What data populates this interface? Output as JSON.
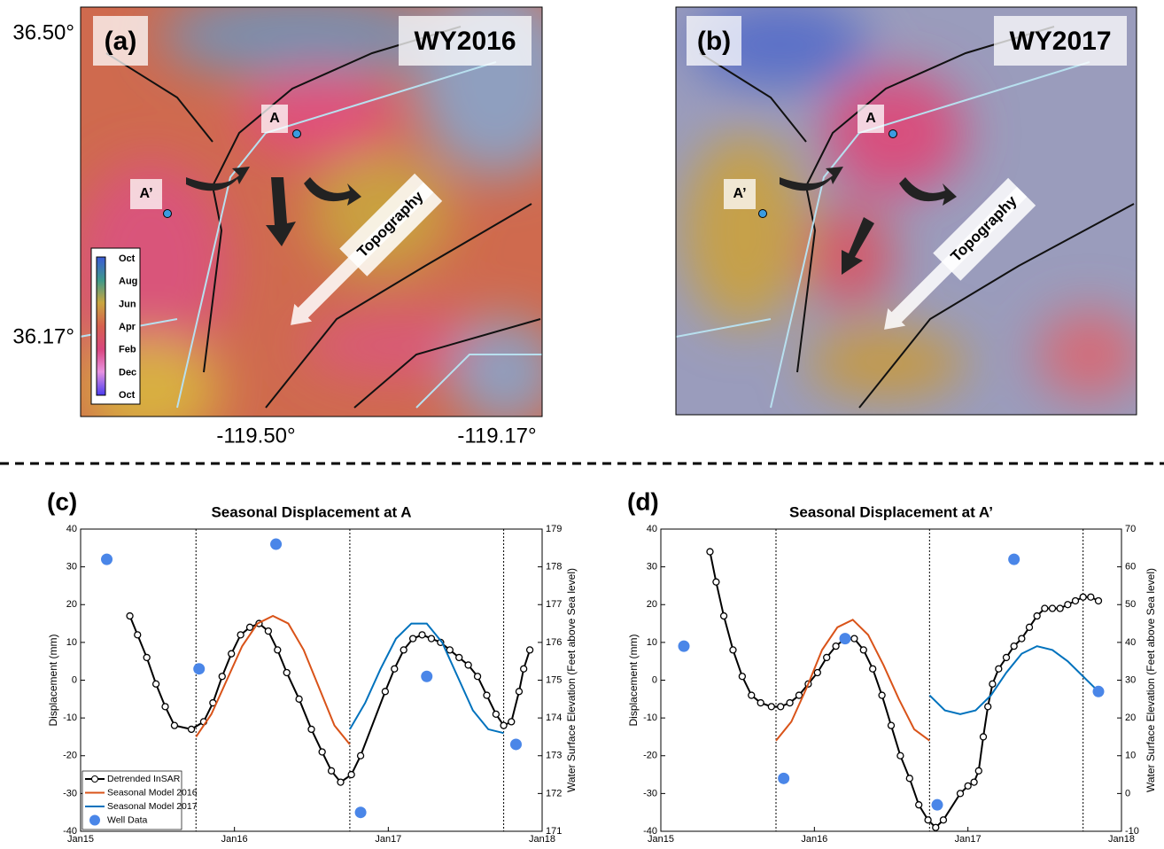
{
  "maps": [
    {
      "panel": "(a)",
      "year": "WY2016",
      "points": [
        "A",
        "A’"
      ],
      "arrow_label": "Topography"
    },
    {
      "panel": "(b)",
      "year": "WY2017",
      "points": [
        "A",
        "A’"
      ],
      "arrow_label": "Topography"
    }
  ],
  "map_axes": {
    "lat": [
      "36.50°",
      "36.17°"
    ],
    "lon": [
      "-119.50°",
      "-119.17°"
    ]
  },
  "colorbar": [
    "Oct",
    "Aug",
    "Jun",
    "Apr",
    "Feb",
    "Dec",
    "Oct"
  ],
  "chart_data": [
    {
      "type": "line",
      "panel": "(c)",
      "title": "Seasonal Displacement at A",
      "ylabel": "Displacement (mm)",
      "y2label": "Water Surface Elevation (Feet above Sea level)",
      "xlim": [
        2015,
        2018
      ],
      "xticks": [
        {
          "value": 2015,
          "label": "Jan15"
        },
        {
          "value": 2016,
          "label": "Jan16"
        },
        {
          "value": 2017,
          "label": "Jan17"
        },
        {
          "value": 2018,
          "label": "Jan18"
        }
      ],
      "ylim": [
        -40,
        40
      ],
      "yticks": [
        -40,
        -30,
        -20,
        -10,
        0,
        10,
        20,
        30,
        40
      ],
      "y2lim": [
        171,
        179
      ],
      "y2ticks": [
        171,
        172,
        173,
        174,
        175,
        176,
        177,
        178,
        179
      ],
      "vlines": [
        2015.75,
        2016.75,
        2017.75
      ],
      "legend": "lower left",
      "series": [
        {
          "name": "Detrended InSAR",
          "color": "#000000",
          "marker": "circle",
          "x": [
            2015.32,
            2015.37,
            2015.43,
            2015.49,
            2015.55,
            2015.61,
            2015.72,
            2015.8,
            2015.86,
            2015.92,
            2015.98,
            2016.04,
            2016.1,
            2016.16,
            2016.22,
            2016.28,
            2016.34,
            2016.42,
            2016.5,
            2016.57,
            2016.63,
            2016.69,
            2016.76,
            2016.82,
            2016.98,
            2017.04,
            2017.1,
            2017.16,
            2017.22,
            2017.28,
            2017.34,
            2017.4,
            2017.46,
            2017.52,
            2017.58,
            2017.64,
            2017.7,
            2017.75,
            2017.8,
            2017.85,
            2017.88,
            2017.92
          ],
          "values": [
            17,
            12,
            6,
            -1,
            -7,
            -12,
            -13,
            -11,
            -6,
            1,
            7,
            12,
            14,
            15,
            13,
            8,
            2,
            -5,
            -13,
            -19,
            -24,
            -27,
            -25,
            -20,
            -3,
            3,
            8,
            11,
            12,
            11,
            10,
            8,
            6,
            4,
            1,
            -4,
            -9,
            -12,
            -11,
            -3,
            3,
            8
          ]
        },
        {
          "name": "Seasonal Model 2016",
          "color": "#d95319",
          "x": [
            2015.75,
            2015.85,
            2015.95,
            2016.05,
            2016.15,
            2016.25,
            2016.35,
            2016.45,
            2016.55,
            2016.65,
            2016.75
          ],
          "values": [
            -15,
            -9,
            0,
            9,
            15,
            17,
            15,
            8,
            -2,
            -12,
            -17
          ]
        },
        {
          "name": "Seasonal Model 2017",
          "color": "#0072bd",
          "x": [
            2016.75,
            2016.85,
            2016.95,
            2017.05,
            2017.15,
            2017.25,
            2017.35,
            2017.45,
            2017.55,
            2017.65,
            2017.75
          ],
          "values": [
            -13,
            -6,
            3,
            11,
            15,
            15,
            10,
            1,
            -8,
            -13,
            -14
          ]
        },
        {
          "name": "Well Data",
          "color": "#4a86e8",
          "marker": "dot",
          "axis": "y2",
          "x": [
            2015.17,
            2015.77,
            2016.27,
            2016.82,
            2017.25,
            2017.83
          ],
          "values": [
            178.2,
            175.3,
            178.6,
            171.5,
            175.1,
            173.3
          ]
        }
      ]
    },
    {
      "type": "line",
      "panel": "(d)",
      "title": "Seasonal Displacement at A’",
      "ylabel": "Displacement (mm)",
      "y2label": "Water Surface Elevation (Feet above Sea level)",
      "xlim": [
        2015,
        2018
      ],
      "xticks": [
        {
          "value": 2015,
          "label": "Jan15"
        },
        {
          "value": 2016,
          "label": "Jan16"
        },
        {
          "value": 2017,
          "label": "Jan17"
        },
        {
          "value": 2018,
          "label": "Jan18"
        }
      ],
      "ylim": [
        -40,
        40
      ],
      "yticks": [
        -40,
        -30,
        -20,
        -10,
        0,
        10,
        20,
        30,
        40
      ],
      "y2lim": [
        -10,
        70
      ],
      "y2ticks": [
        -10,
        0,
        10,
        20,
        30,
        40,
        50,
        60,
        70
      ],
      "vlines": [
        2015.75,
        2016.75,
        2017.75
      ],
      "series": [
        {
          "name": "Detrended InSAR",
          "color": "#000000",
          "marker": "circle",
          "x": [
            2015.32,
            2015.36,
            2015.41,
            2015.47,
            2015.53,
            2015.59,
            2015.65,
            2015.72,
            2015.78,
            2015.84,
            2015.9,
            2015.96,
            2016.02,
            2016.08,
            2016.14,
            2016.2,
            2016.26,
            2016.32,
            2016.38,
            2016.44,
            2016.5,
            2016.56,
            2016.62,
            2016.68,
            2016.74,
            2016.79,
            2016.84,
            2016.95,
            2017.0,
            2017.04,
            2017.07,
            2017.1,
            2017.13,
            2017.16,
            2017.2,
            2017.25,
            2017.3,
            2017.35,
            2017.4,
            2017.45,
            2017.5,
            2017.55,
            2017.6,
            2017.65,
            2017.7,
            2017.75,
            2017.8,
            2017.85
          ],
          "values": [
            34,
            26,
            17,
            8,
            1,
            -4,
            -6,
            -7,
            -7,
            -6,
            -4,
            -1,
            2,
            6,
            9,
            11,
            11,
            8,
            3,
            -4,
            -12,
            -20,
            -26,
            -33,
            -37,
            -39,
            -37,
            -30,
            -28,
            -27,
            -24,
            -15,
            -7,
            -1,
            3,
            6,
            9,
            11,
            14,
            17,
            19,
            19,
            19,
            20,
            21,
            22,
            22,
            21
          ]
        },
        {
          "name": "Seasonal Model 2016",
          "color": "#d95319",
          "x": [
            2015.75,
            2015.85,
            2015.95,
            2016.05,
            2016.15,
            2016.25,
            2016.35,
            2016.45,
            2016.55,
            2016.65,
            2016.75
          ],
          "values": [
            -16,
            -11,
            -2,
            8,
            14,
            16,
            12,
            4,
            -5,
            -13,
            -16
          ]
        },
        {
          "name": "Seasonal Model 2017",
          "color": "#0072bd",
          "x": [
            2016.75,
            2016.85,
            2016.95,
            2017.05,
            2017.15,
            2017.25,
            2017.35,
            2017.45,
            2017.55,
            2017.65,
            2017.75,
            2017.85
          ],
          "values": [
            -4,
            -8,
            -9,
            -8,
            -4,
            2,
            7,
            9,
            8,
            5,
            1,
            -3
          ]
        },
        {
          "name": "Well Data",
          "color": "#4a86e8",
          "marker": "dot",
          "axis": "y2",
          "x": [
            2015.15,
            2015.8,
            2016.2,
            2016.8,
            2017.3,
            2017.85
          ],
          "values": [
            39,
            4,
            41,
            -3,
            62,
            27
          ]
        }
      ]
    }
  ]
}
